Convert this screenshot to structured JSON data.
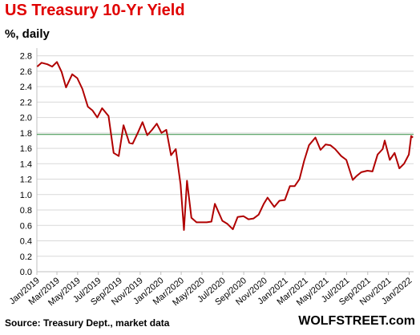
{
  "chart_data": {
    "type": "line",
    "title": "US Treasury  10-Yr Yield",
    "subtitle": "%, daily",
    "source": "Source: Treasury Dept., market data",
    "brand": "WOLFSTREET.com",
    "y_ticks": [
      "0.0",
      "0.2",
      "0.4",
      "0.6",
      "0.8",
      "1.0",
      "1.2",
      "1.4",
      "1.6",
      "1.8",
      "2.0",
      "2.2",
      "2.4",
      "2.6",
      "2.8"
    ],
    "ylim": [
      0,
      2.9
    ],
    "x_ticks": [
      "Jan/2019",
      "Mar/2019",
      "May/2019",
      "Jul/2019",
      "Sep/2019",
      "Nov/2019",
      "Jan/2020",
      "Mar/2020",
      "May/2020",
      "Jul/2020",
      "Sep/2020",
      "Nov/2020",
      "Jan/2021",
      "Mar/2021",
      "May/2021",
      "Jul/2021",
      "Sep/2021",
      "Nov/2021",
      "Jan/2022"
    ],
    "reference_line": {
      "value": 1.78,
      "color": "#2e8b3e"
    },
    "grid": true,
    "line_color": "#b00000",
    "series": [
      {
        "x": [
          "2019-01-02",
          "2019-01-15",
          "2019-02-01",
          "2019-02-15",
          "2019-03-01",
          "2019-03-15",
          "2019-03-28",
          "2019-04-15",
          "2019-04-30",
          "2019-05-15",
          "2019-05-31",
          "2019-06-14",
          "2019-06-28",
          "2019-07-12",
          "2019-07-31",
          "2019-08-15",
          "2019-08-30",
          "2019-09-13",
          "2019-09-30",
          "2019-10-10",
          "2019-10-25",
          "2019-11-08",
          "2019-11-22",
          "2019-12-06",
          "2019-12-20",
          "2020-01-03",
          "2020-01-17",
          "2020-01-31",
          "2020-02-14",
          "2020-02-28",
          "2020-03-09",
          "2020-03-18",
          "2020-03-31",
          "2020-04-15",
          "2020-04-30",
          "2020-05-15",
          "2020-05-29",
          "2020-06-08",
          "2020-06-30",
          "2020-07-15",
          "2020-07-31",
          "2020-08-14",
          "2020-08-31",
          "2020-09-15",
          "2020-09-30",
          "2020-10-15",
          "2020-10-30",
          "2020-11-10",
          "2020-11-30",
          "2020-12-15",
          "2020-12-31",
          "2021-01-15",
          "2021-01-29",
          "2021-02-12",
          "2021-02-26",
          "2021-03-12",
          "2021-03-31",
          "2021-04-15",
          "2021-04-30",
          "2021-05-14",
          "2021-05-28",
          "2021-06-15",
          "2021-06-30",
          "2021-07-19",
          "2021-07-30",
          "2021-08-13",
          "2021-08-31",
          "2021-09-15",
          "2021-09-30",
          "2021-10-15",
          "2021-10-21",
          "2021-11-05",
          "2021-11-19",
          "2021-12-03",
          "2021-12-17",
          "2021-12-31",
          "2022-01-07",
          "2022-01-12"
        ],
        "y": [
          2.66,
          2.71,
          2.69,
          2.66,
          2.72,
          2.59,
          2.39,
          2.56,
          2.51,
          2.37,
          2.14,
          2.09,
          2.0,
          2.12,
          2.02,
          1.54,
          1.5,
          1.9,
          1.67,
          1.66,
          1.8,
          1.94,
          1.77,
          1.84,
          1.92,
          1.8,
          1.84,
          1.51,
          1.59,
          1.13,
          0.54,
          1.18,
          0.7,
          0.64,
          0.64,
          0.64,
          0.65,
          0.88,
          0.66,
          0.62,
          0.55,
          0.71,
          0.72,
          0.68,
          0.69,
          0.74,
          0.88,
          0.96,
          0.84,
          0.92,
          0.93,
          1.11,
          1.11,
          1.2,
          1.44,
          1.64,
          1.74,
          1.58,
          1.65,
          1.64,
          1.59,
          1.5,
          1.45,
          1.19,
          1.24,
          1.29,
          1.31,
          1.3,
          1.52,
          1.59,
          1.7,
          1.45,
          1.54,
          1.34,
          1.4,
          1.52,
          1.76,
          1.74
        ]
      }
    ]
  }
}
